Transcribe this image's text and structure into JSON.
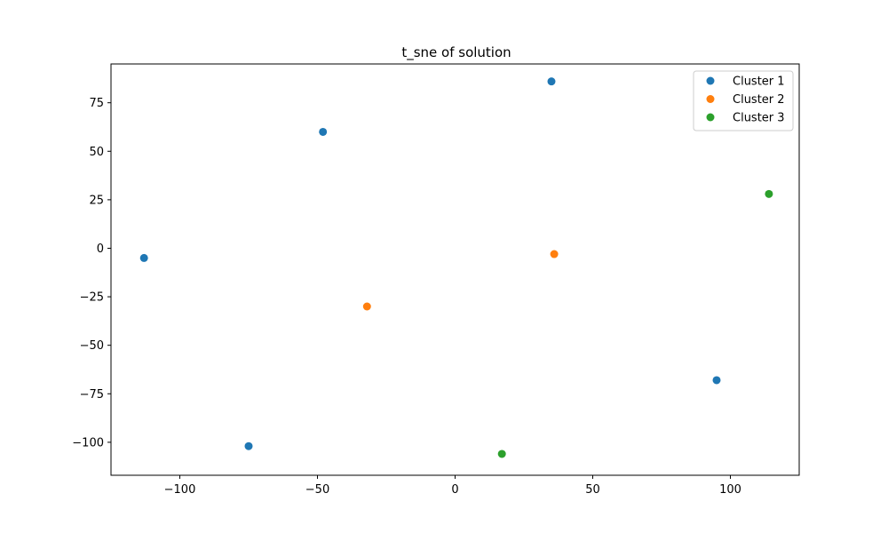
{
  "chart_data": {
    "type": "scatter",
    "title": "t_sne of solution",
    "xlabel": "",
    "ylabel": "",
    "xlim": [
      -125,
      125
    ],
    "ylim": [
      -117,
      95
    ],
    "xticks": [
      -100,
      -50,
      0,
      50,
      100
    ],
    "xtick_labels": [
      "−100",
      "−50",
      "0",
      "50",
      "100"
    ],
    "yticks": [
      -100,
      -75,
      -50,
      -25,
      0,
      25,
      50,
      75
    ],
    "ytick_labels": [
      "−100",
      "−75",
      "−50",
      "−25",
      "0",
      "25",
      "50",
      "75"
    ],
    "grid": false,
    "legend_position": "top-right",
    "series": [
      {
        "name": "Cluster 1",
        "color": "#1f77b4",
        "points": [
          {
            "x": 35,
            "y": 86
          },
          {
            "x": -48,
            "y": 60
          },
          {
            "x": -113,
            "y": -5
          },
          {
            "x": 95,
            "y": -68
          },
          {
            "x": -75,
            "y": -102
          }
        ]
      },
      {
        "name": "Cluster 2",
        "color": "#ff7f0e",
        "points": [
          {
            "x": 36,
            "y": -3
          },
          {
            "x": -32,
            "y": -30
          }
        ]
      },
      {
        "name": "Cluster 3",
        "color": "#2ca02c",
        "points": [
          {
            "x": 114,
            "y": 28
          },
          {
            "x": 17,
            "y": -106
          }
        ]
      }
    ]
  }
}
